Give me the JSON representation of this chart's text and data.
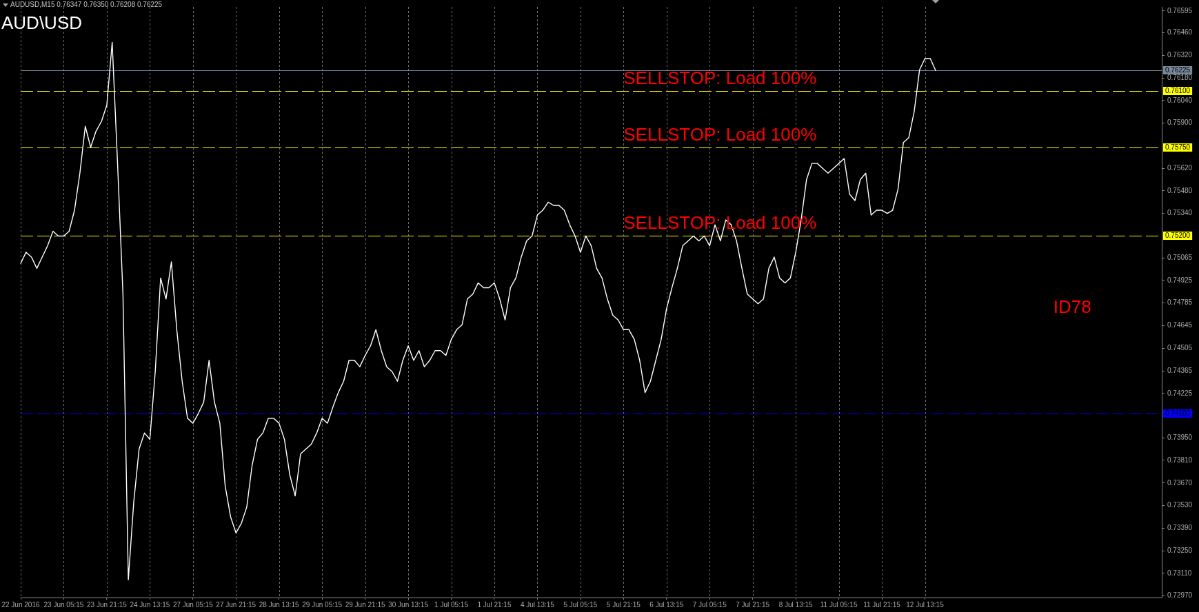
{
  "chart_data": {
    "type": "line",
    "title": "AUD\\USD",
    "subtitle": "AUDUSD,M15 0.76347 0.76350 0.76208 0.76225",
    "categories": [
      "22 Jun 2016",
      null,
      null,
      null,
      null,
      null,
      null,
      null,
      "23 Jun 05:15",
      null,
      null,
      null,
      null,
      null,
      null,
      null,
      "23 Jun 21:15",
      null,
      null,
      null,
      null,
      null,
      null,
      null,
      "24 Jun 13:15",
      null,
      null,
      null,
      null,
      null,
      null,
      null,
      "27 Jun 05:15",
      null,
      null,
      null,
      null,
      null,
      null,
      null,
      "27 Jun 21:15",
      null,
      null,
      null,
      null,
      null,
      null,
      null,
      "28 Jun 13:15",
      null,
      null,
      null,
      null,
      null,
      null,
      null,
      "29 Jun 05:15",
      null,
      null,
      null,
      null,
      null,
      null,
      null,
      "29 Jun 21:15",
      null,
      null,
      null,
      null,
      null,
      null,
      null,
      "30 Jun 13:15",
      null,
      null,
      null,
      null,
      null,
      null,
      null,
      "1 Jul 05:15",
      null,
      null,
      null,
      null,
      null,
      null,
      null,
      "1 Jul 21:15",
      null,
      null,
      null,
      null,
      null,
      null,
      null,
      "4 Jul 13:15",
      null,
      null,
      null,
      null,
      null,
      null,
      null,
      "5 Jul 05:15",
      null,
      null,
      null,
      null,
      null,
      null,
      null,
      "5 Jul 21:15",
      null,
      null,
      null,
      null,
      null,
      null,
      null,
      "6 Jul 13:15",
      null,
      null,
      null,
      null,
      null,
      null,
      null,
      "7 Jul 05:15",
      null,
      null,
      null,
      null,
      null,
      null,
      null,
      "7 Jul 21:15",
      null,
      null,
      null,
      null,
      null,
      null,
      null,
      "8 Jul 13:15",
      null,
      null,
      null,
      null,
      null,
      null,
      null,
      "11 Jul 05:15",
      null,
      null,
      null,
      null,
      null,
      null,
      null,
      "11 Jul 21:15",
      null,
      null,
      null,
      null,
      null,
      null,
      null,
      "12 Jul 13:15",
      null,
      null,
      null,
      null,
      null,
      null,
      null,
      null,
      null,
      null,
      null,
      null,
      null,
      null,
      null,
      null,
      null,
      null,
      null,
      null,
      null,
      null,
      null,
      null,
      null,
      null,
      null,
      null,
      null,
      null,
      null,
      null,
      null,
      null,
      null,
      null,
      null,
      null,
      null,
      null,
      null,
      null,
      null,
      null
    ],
    "values": [
      0.7503,
      0.751,
      0.7507,
      0.75,
      0.7507,
      0.7514,
      0.7523,
      0.752,
      0.752,
      0.7523,
      0.7536,
      0.7559,
      0.7588,
      0.7575,
      0.7585,
      0.7591,
      0.7601,
      0.764,
      0.7565,
      0.7484,
      0.7307,
      0.7355,
      0.7388,
      0.7398,
      0.7394,
      0.7436,
      0.7494,
      0.7481,
      0.7504,
      0.7462,
      0.743,
      0.7407,
      0.7404,
      0.741,
      0.7417,
      0.7443,
      0.7417,
      0.7404,
      0.7365,
      0.7346,
      0.7336,
      0.7342,
      0.7352,
      0.7378,
      0.7394,
      0.7398,
      0.7407,
      0.7407,
      0.7404,
      0.7394,
      0.7372,
      0.7359,
      0.7385,
      0.7388,
      0.7391,
      0.7398,
      0.7407,
      0.7404,
      0.7414,
      0.7423,
      0.743,
      0.7443,
      0.7443,
      0.7439,
      0.7446,
      0.7452,
      0.7462,
      0.7449,
      0.7439,
      0.7436,
      0.743,
      0.7443,
      0.7452,
      0.7443,
      0.7449,
      0.7439,
      0.7443,
      0.7449,
      0.7449,
      0.7446,
      0.7456,
      0.7462,
      0.7465,
      0.7481,
      0.7484,
      0.7491,
      0.7488,
      0.7488,
      0.7491,
      0.7481,
      0.7468,
      0.7488,
      0.7494,
      0.7507,
      0.7517,
      0.752,
      0.7533,
      0.7536,
      0.7541,
      0.7539,
      0.7539,
      0.7536,
      0.7527,
      0.752,
      0.751,
      0.752,
      0.7514,
      0.75,
      0.7494,
      0.7481,
      0.7471,
      0.7468,
      0.7462,
      0.7462,
      0.7456,
      0.7443,
      0.7423,
      0.743,
      0.7443,
      0.7456,
      0.7475,
      0.7488,
      0.75,
      0.7514,
      0.7517,
      0.752,
      0.7517,
      0.752,
      0.7514,
      0.7527,
      0.7517,
      0.753,
      0.7527,
      0.7517,
      0.75,
      0.7484,
      0.7481,
      0.7478,
      0.7481,
      0.75,
      0.7507,
      0.7494,
      0.7491,
      0.7494,
      0.751,
      0.753,
      0.7555,
      0.7565,
      0.7565,
      0.7562,
      0.7559,
      0.7562,
      0.7565,
      0.7568,
      0.7546,
      0.7542,
      0.7555,
      0.7559,
      0.7533,
      0.7536,
      0.7536,
      0.7534,
      0.7536,
      0.7549,
      0.7578,
      0.7581,
      0.7597,
      0.7623,
      0.763,
      0.763,
      0.76225,
      null,
      null,
      null,
      null,
      null,
      null,
      null,
      null,
      null,
      null,
      null,
      null,
      null,
      null,
      null,
      null,
      null,
      null,
      null,
      null,
      null,
      null,
      null,
      null,
      null,
      null,
      null,
      null,
      null,
      null,
      null,
      null,
      null,
      null,
      null,
      null,
      null,
      null,
      null,
      null,
      null,
      null
    ],
    "color": "#ffffff",
    "ylim": [
      0.7296,
      0.7662
    ],
    "yticks": [
      {
        "value": 0.7297,
        "label": "0.72970"
      },
      {
        "value": 0.7311,
        "label": "0.73110"
      },
      {
        "value": 0.7325,
        "label": "0.73250"
      },
      {
        "value": 0.7339,
        "label": "0.73390"
      },
      {
        "value": 0.7353,
        "label": "0.73530"
      },
      {
        "value": 0.7367,
        "label": "0.73670"
      },
      {
        "value": 0.7381,
        "label": "0.73810"
      },
      {
        "value": 0.7395,
        "label": "0.73950"
      },
      0.74225,
      0.74365,
      0.74505,
      0.74645,
      0.74785,
      0.74925,
      0.75065,
      {
        "value": 0.7534,
        "label": "0.75340"
      },
      {
        "value": 0.7548,
        "label": "0.75480"
      },
      {
        "value": 0.7562,
        "label": "0.75620"
      },
      {
        "value": 0.759,
        "label": "0.75900"
      },
      {
        "value": 0.7604,
        "label": "0.76040"
      },
      {
        "value": 0.7618,
        "label": "0.76180"
      },
      {
        "value": 0.7632,
        "label": "0.76320"
      },
      {
        "value": 0.7646,
        "label": "0.76460"
      },
      0.76595
    ],
    "grid": "x",
    "ref_lines": [
      {
        "axis": "y",
        "value": 0.76225,
        "label": "0.76225",
        "color": "#778899",
        "line_style": "solid"
      },
      {
        "axis": "y",
        "value": 0.761,
        "label": "0.76100",
        "color": "#ffff00",
        "line_style": "dashed"
      },
      {
        "axis": "y",
        "value": 0.7575,
        "label": "0.75750",
        "color": "#ffff00",
        "line_style": "dashed"
      },
      {
        "axis": "y",
        "value": 0.752,
        "label": "0.75200",
        "color": "#ffff00",
        "line_style": "dashed"
      },
      {
        "axis": "y",
        "value": 0.741,
        "label": "0.74100",
        "color": "#0000ff",
        "line_style": "dashed"
      }
    ],
    "annotations": [
      {
        "text": "SELLSTOP: Load 100%",
        "x": "5 Jul 21:15",
        "y": 0.761
      },
      {
        "text": "SELLSTOP: Load 100%",
        "x": "5 Jul 21:15",
        "y": 0.7575
      },
      {
        "text": "SELLSTOP: Load 100%",
        "x": "5 Jul 21:15",
        "y": 0.752
      },
      "ID78"
    ]
  }
}
